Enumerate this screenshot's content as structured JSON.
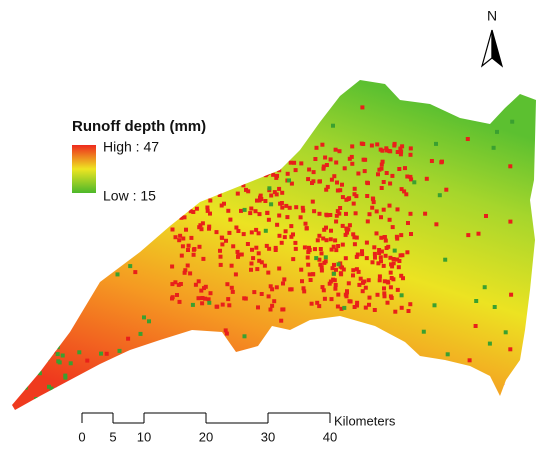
{
  "north_label": "N",
  "legend": {
    "title": "Runoff depth (mm)",
    "high": "High : 47",
    "low": "Low : 15"
  },
  "scale_bar": {
    "ticks": [
      0,
      5,
      10,
      20,
      30,
      40
    ],
    "unit": "Kilometers"
  }
}
